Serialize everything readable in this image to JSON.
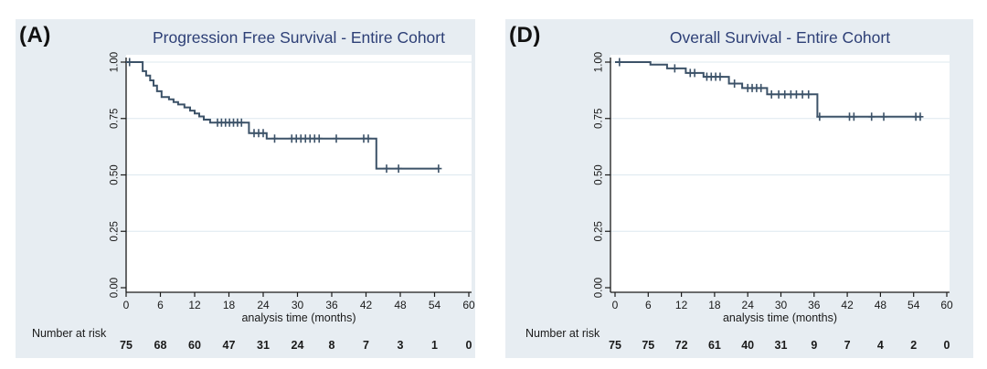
{
  "figure": {
    "colors": {
      "page_bg": "#ffffff",
      "panel_bg": "#e7edf2",
      "plot_bg": "#ffffff",
      "grid": "#dde8ef",
      "axis": "#1a1a1a",
      "text": "#1a1a1a",
      "curve": "#3c5268",
      "title": "#2d3f76",
      "corner_label": "#111111"
    }
  },
  "chart_data": [
    {
      "type": "line",
      "subtype": "kaplan-meier-step",
      "panel": "(A)",
      "title": "Progression Free Survival - Entire Cohort",
      "xlabel": "analysis time (months)",
      "risk_label": "Number at risk",
      "legend": "none",
      "grid": "horizontal",
      "xlim": [
        0,
        60
      ],
      "ylim": [
        0,
        1
      ],
      "xticks": [
        0,
        6,
        12,
        18,
        24,
        30,
        36,
        42,
        48,
        54,
        60
      ],
      "yticks": [
        0,
        0.25,
        0.5,
        0.75,
        1
      ],
      "ytick_labels": [
        "0.00",
        "0.25",
        "0.50",
        "0.75",
        "1.00"
      ],
      "steps": [
        [
          0,
          1.0
        ],
        [
          2.9,
          0.96
        ],
        [
          3.5,
          0.94
        ],
        [
          4.2,
          0.919
        ],
        [
          4.8,
          0.896
        ],
        [
          5.4,
          0.871
        ],
        [
          6.2,
          0.845
        ],
        [
          7.5,
          0.835
        ],
        [
          8.3,
          0.823
        ],
        [
          9.1,
          0.812
        ],
        [
          10.2,
          0.799
        ],
        [
          11.2,
          0.785
        ],
        [
          12.0,
          0.772
        ],
        [
          12.8,
          0.759
        ],
        [
          13.6,
          0.745
        ],
        [
          14.7,
          0.732
        ],
        [
          21.5,
          0.685
        ],
        [
          24.6,
          0.661
        ],
        [
          43.8,
          0.528
        ]
      ],
      "end_time": 54.8,
      "censors": [
        [
          0.6,
          1.0
        ],
        [
          16.0,
          0.732
        ],
        [
          16.7,
          0.732
        ],
        [
          17.4,
          0.732
        ],
        [
          18.1,
          0.732
        ],
        [
          18.8,
          0.732
        ],
        [
          19.5,
          0.732
        ],
        [
          20.2,
          0.732
        ],
        [
          22.4,
          0.685
        ],
        [
          23.2,
          0.685
        ],
        [
          24.0,
          0.685
        ],
        [
          26.0,
          0.661
        ],
        [
          29.0,
          0.661
        ],
        [
          29.8,
          0.661
        ],
        [
          30.6,
          0.661
        ],
        [
          31.4,
          0.661
        ],
        [
          32.2,
          0.661
        ],
        [
          33.0,
          0.661
        ],
        [
          33.8,
          0.661
        ],
        [
          36.8,
          0.661
        ],
        [
          41.6,
          0.661
        ],
        [
          42.4,
          0.661
        ],
        [
          45.6,
          0.528
        ],
        [
          47.7,
          0.528
        ],
        [
          54.7,
          0.528
        ]
      ],
      "number_at_risk": [
        75,
        68,
        60,
        47,
        31,
        24,
        8,
        7,
        3,
        1,
        0
      ]
    },
    {
      "type": "line",
      "subtype": "kaplan-meier-step",
      "panel": "(D)",
      "title": "Overall Survival - Entire Cohort",
      "xlabel": "analysis time (months)",
      "risk_label": "Number at risk",
      "legend": "none",
      "grid": "horizontal",
      "xlim": [
        0,
        60
      ],
      "ylim": [
        0,
        1
      ],
      "xticks": [
        0,
        6,
        12,
        18,
        24,
        30,
        36,
        42,
        48,
        54,
        60
      ],
      "yticks": [
        0,
        0.25,
        0.5,
        0.75,
        1
      ],
      "ytick_labels": [
        "0.00",
        "0.25",
        "0.50",
        "0.75",
        "1.00"
      ],
      "steps": [
        [
          0,
          1.0
        ],
        [
          6.4,
          0.989
        ],
        [
          9.4,
          0.972
        ],
        [
          12.8,
          0.952
        ],
        [
          16.0,
          0.935
        ],
        [
          20.6,
          0.905
        ],
        [
          23.0,
          0.885
        ],
        [
          27.5,
          0.857
        ],
        [
          36.6,
          0.758
        ]
      ],
      "end_time": 55.4,
      "censors": [
        [
          0.8,
          1.0
        ],
        [
          10.8,
          0.972
        ],
        [
          13.6,
          0.952
        ],
        [
          14.4,
          0.952
        ],
        [
          16.6,
          0.935
        ],
        [
          17.4,
          0.935
        ],
        [
          18.2,
          0.935
        ],
        [
          19.0,
          0.935
        ],
        [
          21.6,
          0.905
        ],
        [
          24.0,
          0.885
        ],
        [
          24.8,
          0.885
        ],
        [
          25.6,
          0.885
        ],
        [
          26.4,
          0.885
        ],
        [
          28.3,
          0.857
        ],
        [
          29.6,
          0.857
        ],
        [
          30.7,
          0.857
        ],
        [
          31.8,
          0.857
        ],
        [
          32.8,
          0.857
        ],
        [
          33.9,
          0.857
        ],
        [
          35.0,
          0.857
        ],
        [
          37.0,
          0.758
        ],
        [
          42.4,
          0.758
        ],
        [
          43.2,
          0.758
        ],
        [
          46.4,
          0.758
        ],
        [
          48.6,
          0.758
        ],
        [
          54.4,
          0.758
        ],
        [
          55.2,
          0.758
        ]
      ],
      "number_at_risk": [
        75,
        75,
        72,
        61,
        40,
        31,
        9,
        7,
        4,
        2,
        0
      ]
    }
  ]
}
